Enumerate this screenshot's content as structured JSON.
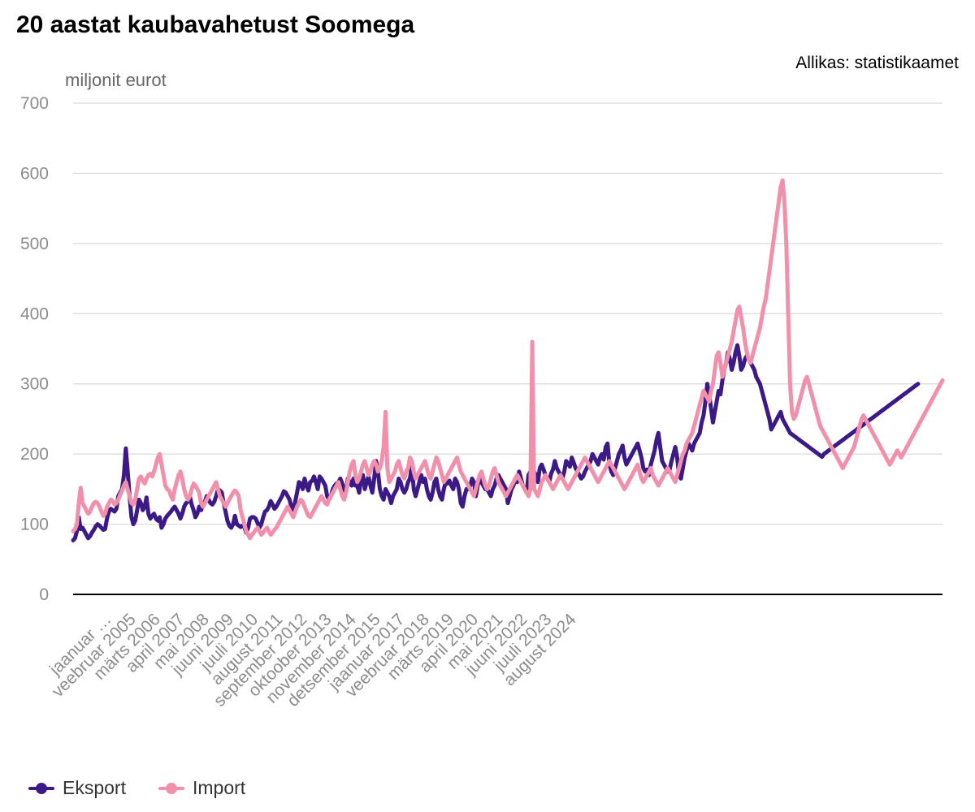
{
  "chart_data": {
    "type": "line",
    "title": "20 aastat kaubavahetust Soomega",
    "source": "Allikas: statistikaamet",
    "ylabel": "miljonit eurot",
    "xlabel": "",
    "ylim": [
      0,
      700
    ],
    "yticks": [
      0,
      100,
      200,
      300,
      400,
      500,
      600,
      700
    ],
    "x_tick_labels": [
      "jaanuar …",
      "veebruar 2005",
      "märts 2006",
      "april 2007",
      "mai 2008",
      "juuni 2009",
      "juuli 2010",
      "august 2011",
      "september 2012",
      "oktoober 2013",
      "november 2014",
      "detsember 2015",
      "jaanuar 2017",
      "veebruar 2018",
      "märts 2019",
      "april 2020",
      "mai 2021",
      "juuni 2022",
      "juuli 2023",
      "august 2024"
    ],
    "x_tick_month_index": [
      0,
      13,
      26,
      39,
      52,
      65,
      78,
      91,
      104,
      117,
      130,
      143,
      156,
      169,
      182,
      195,
      208,
      221,
      234,
      247
    ],
    "x_start": "2004-01",
    "grid": true,
    "legend_position": "bottom-left",
    "series": [
      {
        "name": "Eksport",
        "color": "#3b1a87",
        "values": [
          77,
          80,
          90,
          110,
          93,
          95,
          90,
          85,
          80,
          83,
          88,
          92,
          97,
          100,
          98,
          95,
          92,
          93,
          108,
          118,
          122,
          120,
          118,
          122,
          140,
          145,
          150,
          170,
          208,
          175,
          140,
          110,
          100,
          105,
          120,
          135,
          130,
          120,
          125,
          138,
          115,
          108,
          112,
          115,
          108,
          105,
          110,
          95,
          100,
          108,
          112,
          115,
          118,
          122,
          125,
          120,
          115,
          108,
          115,
          125,
          130,
          132,
          140,
          128,
          120,
          110,
          115,
          125,
          120,
          128,
          132,
          140,
          135,
          130,
          128,
          132,
          140,
          150,
          148,
          145,
          130,
          118,
          105,
          98,
          95,
          100,
          112,
          100,
          98,
          96,
          98,
          96,
          88,
          95,
          108,
          110,
          110,
          108,
          102,
          95,
          100,
          110,
          118,
          120,
          125,
          133,
          128,
          122,
          125,
          130,
          135,
          140,
          147,
          145,
          140,
          135,
          125,
          120,
          132,
          145,
          160,
          158,
          150,
          165,
          155,
          148,
          160,
          162,
          168,
          160,
          150,
          168,
          165,
          160,
          155,
          140,
          135,
          140,
          150,
          155,
          158,
          160,
          165,
          158,
          150,
          145,
          165,
          160,
          155,
          165,
          155,
          155,
          145,
          165,
          170,
          150,
          160,
          168,
          155,
          145,
          165,
          190,
          175,
          150,
          140,
          135,
          150,
          145,
          140,
          130,
          140,
          145,
          150,
          165,
          160,
          150,
          145,
          150,
          160,
          165,
          185,
          150,
          140,
          150,
          160,
          170,
          160,
          165,
          150,
          140,
          135,
          145,
          160,
          165,
          150,
          140,
          135,
          150,
          160,
          158,
          162,
          155,
          150,
          165,
          160,
          150,
          130,
          125,
          140,
          150,
          150,
          155,
          165,
          160,
          140,
          155,
          165,
          160,
          155,
          150,
          150,
          145,
          140,
          150,
          155,
          165,
          170,
          165,
          160,
          155,
          150,
          130,
          140,
          150,
          155,
          165,
          160,
          175,
          165,
          155,
          150,
          145,
          170,
          175,
          168,
          175,
          170,
          160,
          180,
          185,
          178,
          170,
          165,
          160,
          172,
          178,
          190,
          180,
          175,
          170,
          165,
          175,
          190,
          186,
          182,
          195,
          188,
          180,
          175,
          170,
          165,
          168,
          175,
          180,
          185,
          190,
          200,
          195,
          190,
          185,
          195,
          200,
          192,
          210,
          215,
          185,
          175,
          170,
          180,
          190,
          200,
          205,
          212,
          195,
          185,
          190,
          195,
          200,
          205,
          210,
          215,
          205,
          195,
          180,
          175,
          178,
          170,
          185,
          195,
          205,
          220,
          230,
          210,
          190,
          185,
          180,
          175,
          178,
          190,
          200,
          210,
          195,
          170,
          165,
          180,
          195,
          205,
          215,
          210,
          205,
          215,
          220,
          225,
          230,
          245,
          255,
          275,
          300,
          285,
          265,
          245,
          260,
          275,
          290,
          285,
          305,
          320,
          330,
          345,
          335,
          320,
          330,
          345,
          355,
          340,
          320,
          325,
          335,
          340,
          335,
          330,
          325,
          320,
          310,
          305,
          300,
          290,
          280,
          270,
          260,
          250,
          235,
          240,
          245,
          250,
          255,
          260,
          250,
          245,
          240,
          235,
          230,
          228,
          226,
          224,
          222,
          220,
          218,
          216,
          214,
          212,
          210,
          208,
          206,
          204,
          202,
          200,
          198,
          196,
          200,
          202,
          204,
          206,
          208,
          210,
          212,
          214,
          216,
          218,
          220,
          222,
          224,
          226,
          228,
          230,
          232,
          234,
          236,
          238,
          240,
          242,
          244,
          246,
          248,
          250,
          252,
          254,
          256,
          258,
          260,
          262,
          264,
          266,
          268,
          270,
          272,
          274,
          276,
          278,
          280,
          282,
          284,
          286,
          288,
          290,
          292,
          294,
          296,
          298,
          300
        ]
      },
      {
        "name": "Import",
        "color": "#f28fab",
        "values": [
          90,
          93,
          100,
          130,
          152,
          130,
          125,
          120,
          115,
          118,
          125,
          130,
          132,
          130,
          125,
          118,
          112,
          115,
          125,
          130,
          135,
          133,
          128,
          130,
          135,
          142,
          148,
          155,
          160,
          150,
          140,
          130,
          128,
          135,
          150,
          165,
          168,
          162,
          158,
          165,
          170,
          172,
          168,
          175,
          185,
          195,
          200,
          185,
          170,
          155,
          150,
          148,
          140,
          135,
          150,
          160,
          170,
          175,
          165,
          150,
          140,
          135,
          140,
          150,
          158,
          155,
          150,
          145,
          130,
          125,
          130,
          135,
          140,
          145,
          150,
          155,
          160,
          150,
          140,
          135,
          130,
          125,
          130,
          135,
          140,
          145,
          148,
          145,
          140,
          120,
          110,
          100,
          90,
          85,
          80,
          85,
          88,
          92,
          95,
          90,
          85,
          88,
          92,
          95,
          90,
          85,
          88,
          92,
          95,
          100,
          105,
          110,
          115,
          120,
          125,
          120,
          115,
          110,
          118,
          125,
          130,
          135,
          132,
          125,
          118,
          112,
          110,
          115,
          120,
          125,
          130,
          135,
          140,
          135,
          130,
          128,
          135,
          140,
          145,
          150,
          155,
          160,
          150,
          140,
          135,
          145,
          160,
          175,
          185,
          190,
          170,
          160,
          165,
          175,
          185,
          190,
          180,
          170,
          175,
          185,
          190,
          185,
          175,
          180,
          190,
          210,
          260,
          180,
          160,
          165,
          170,
          175,
          185,
          190,
          180,
          170,
          165,
          175,
          180,
          195,
          190,
          175,
          165,
          170,
          175,
          180,
          185,
          190,
          180,
          170,
          165,
          175,
          185,
          195,
          190,
          180,
          170,
          160,
          165,
          170,
          175,
          180,
          185,
          190,
          195,
          185,
          175,
          170,
          165,
          160,
          155,
          150,
          145,
          140,
          150,
          160,
          170,
          175,
          165,
          155,
          150,
          155,
          165,
          175,
          180,
          170,
          160,
          155,
          150,
          145,
          140,
          145,
          150,
          155,
          160,
          165,
          170,
          165,
          160,
          155,
          150,
          145,
          140,
          150,
          360,
          150,
          145,
          140,
          150,
          160,
          165,
          170,
          165,
          160,
          155,
          150,
          155,
          160,
          165,
          170,
          165,
          160,
          155,
          150,
          155,
          160,
          165,
          170,
          175,
          180,
          185,
          190,
          195,
          190,
          185,
          180,
          175,
          170,
          165,
          160,
          165,
          170,
          175,
          180,
          185,
          190,
          185,
          180,
          175,
          170,
          165,
          160,
          155,
          150,
          155,
          160,
          165,
          170,
          175,
          180,
          185,
          175,
          165,
          160,
          165,
          170,
          175,
          180,
          170,
          165,
          160,
          155,
          160,
          165,
          170,
          175,
          180,
          175,
          170,
          165,
          160,
          170,
          180,
          190,
          200,
          205,
          215,
          220,
          225,
          230,
          240,
          250,
          260,
          270,
          280,
          290,
          285,
          280,
          275,
          290,
          300,
          320,
          340,
          345,
          330,
          310,
          320,
          330,
          340,
          350,
          360,
          375,
          390,
          405,
          410,
          395,
          380,
          360,
          345,
          335,
          330,
          340,
          350,
          360,
          370,
          380,
          395,
          410,
          420,
          440,
          460,
          480,
          500,
          520,
          540,
          560,
          580,
          590,
          560,
          500,
          400,
          300,
          260,
          250,
          255,
          265,
          275,
          285,
          295,
          305,
          310,
          300,
          290,
          280,
          270,
          260,
          250,
          240,
          235,
          230,
          225,
          220,
          215,
          210,
          205,
          200,
          195,
          190,
          185,
          180,
          185,
          190,
          195,
          200,
          205,
          210,
          220,
          230,
          240,
          250,
          255,
          250,
          245,
          240,
          235,
          230,
          225,
          220,
          215,
          210,
          205,
          200,
          195,
          190,
          185,
          190,
          195,
          200,
          205,
          200,
          195,
          200,
          205,
          210,
          215,
          220,
          225,
          230,
          235,
          240,
          245,
          250,
          255,
          260,
          265,
          270,
          275,
          280,
          285,
          290,
          295,
          300,
          305
        ]
      }
    ]
  }
}
